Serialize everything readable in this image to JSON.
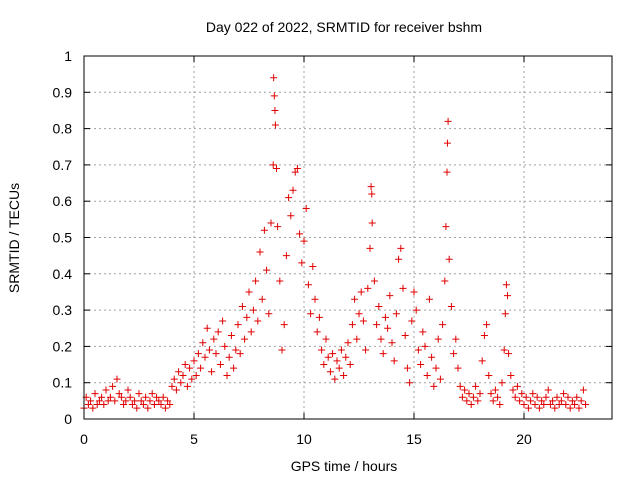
{
  "chart_data": {
    "type": "scatter",
    "title": "Day 022 of 2022, SRMTID for receiver bshm",
    "xlabel": "GPS time / hours",
    "ylabel": "SRMTID / TECUs",
    "xlim": [
      0,
      24
    ],
    "ylim": [
      0,
      1
    ],
    "xticks": [
      0,
      5,
      10,
      15,
      20
    ],
    "yticks": [
      0,
      0.1,
      0.2,
      0.3,
      0.4,
      0.5,
      0.6,
      0.7,
      0.8,
      0.9,
      1
    ],
    "xtick_labels": [
      "0",
      "5",
      "10",
      "15",
      "20"
    ],
    "ytick_labels": [
      "0",
      "0.1",
      "0.2",
      "0.3",
      "0.4",
      "0.5",
      "0.6",
      "0.7",
      "0.8",
      "0.9",
      "1"
    ],
    "grid": true,
    "marker": "+",
    "color": "#e00000",
    "series": [
      {
        "name": "SRMTID",
        "points": [
          [
            0.0,
            0.03
          ],
          [
            0.1,
            0.06
          ],
          [
            0.2,
            0.04
          ],
          [
            0.3,
            0.05
          ],
          [
            0.4,
            0.03
          ],
          [
            0.5,
            0.07
          ],
          [
            0.6,
            0.04
          ],
          [
            0.7,
            0.05
          ],
          [
            0.8,
            0.06
          ],
          [
            0.9,
            0.04
          ],
          [
            1.0,
            0.08
          ],
          [
            1.1,
            0.05
          ],
          [
            1.2,
            0.06
          ],
          [
            1.3,
            0.09
          ],
          [
            1.4,
            0.05
          ],
          [
            1.5,
            0.11
          ],
          [
            1.6,
            0.07
          ],
          [
            1.7,
            0.06
          ],
          [
            1.8,
            0.04
          ],
          [
            1.9,
            0.05
          ],
          [
            2.0,
            0.08
          ],
          [
            2.1,
            0.06
          ],
          [
            2.2,
            0.04
          ],
          [
            2.3,
            0.05
          ],
          [
            2.4,
            0.03
          ],
          [
            2.5,
            0.07
          ],
          [
            2.6,
            0.05
          ],
          [
            2.7,
            0.04
          ],
          [
            2.8,
            0.06
          ],
          [
            2.9,
            0.03
          ],
          [
            3.0,
            0.05
          ],
          [
            3.1,
            0.07
          ],
          [
            3.2,
            0.04
          ],
          [
            3.3,
            0.06
          ],
          [
            3.4,
            0.05
          ],
          [
            3.5,
            0.04
          ],
          [
            3.6,
            0.06
          ],
          [
            3.7,
            0.03
          ],
          [
            3.8,
            0.05
          ],
          [
            3.9,
            0.04
          ],
          [
            4.0,
            0.09
          ],
          [
            4.1,
            0.11
          ],
          [
            4.2,
            0.08
          ],
          [
            4.3,
            0.13
          ],
          [
            4.4,
            0.1
          ],
          [
            4.5,
            0.12
          ],
          [
            4.6,
            0.15
          ],
          [
            4.7,
            0.09
          ],
          [
            4.8,
            0.14
          ],
          [
            4.9,
            0.11
          ],
          [
            5.0,
            0.16
          ],
          [
            5.1,
            0.12
          ],
          [
            5.2,
            0.18
          ],
          [
            5.3,
            0.14
          ],
          [
            5.4,
            0.21
          ],
          [
            5.5,
            0.17
          ],
          [
            5.6,
            0.25
          ],
          [
            5.7,
            0.19
          ],
          [
            5.8,
            0.13
          ],
          [
            5.9,
            0.22
          ],
          [
            6.0,
            0.18
          ],
          [
            6.1,
            0.24
          ],
          [
            6.2,
            0.15
          ],
          [
            6.3,
            0.27
          ],
          [
            6.4,
            0.2
          ],
          [
            6.5,
            0.12
          ],
          [
            6.6,
            0.17
          ],
          [
            6.7,
            0.23
          ],
          [
            6.8,
            0.14
          ],
          [
            6.9,
            0.19
          ],
          [
            7.0,
            0.26
          ],
          [
            7.1,
            0.18
          ],
          [
            7.2,
            0.31
          ],
          [
            7.3,
            0.22
          ],
          [
            7.4,
            0.28
          ],
          [
            7.5,
            0.35
          ],
          [
            7.6,
            0.24
          ],
          [
            7.7,
            0.3
          ],
          [
            7.8,
            0.38
          ],
          [
            7.9,
            0.27
          ],
          [
            8.0,
            0.46
          ],
          [
            8.1,
            0.33
          ],
          [
            8.2,
            0.52
          ],
          [
            8.3,
            0.41
          ],
          [
            8.4,
            0.29
          ],
          [
            8.5,
            0.54
          ],
          [
            8.6,
            0.7
          ],
          [
            8.62,
            0.94
          ],
          [
            8.65,
            0.89
          ],
          [
            8.68,
            0.85
          ],
          [
            8.7,
            0.81
          ],
          [
            8.75,
            0.69
          ],
          [
            8.8,
            0.53
          ],
          [
            8.9,
            0.38
          ],
          [
            9.0,
            0.19
          ],
          [
            9.1,
            0.26
          ],
          [
            9.2,
            0.45
          ],
          [
            9.3,
            0.61
          ],
          [
            9.4,
            0.56
          ],
          [
            9.5,
            0.63
          ],
          [
            9.6,
            0.68
          ],
          [
            9.7,
            0.69
          ],
          [
            9.8,
            0.51
          ],
          [
            9.9,
            0.43
          ],
          [
            10.0,
            0.49
          ],
          [
            10.1,
            0.58
          ],
          [
            10.2,
            0.37
          ],
          [
            10.3,
            0.29
          ],
          [
            10.4,
            0.42
          ],
          [
            10.5,
            0.33
          ],
          [
            10.6,
            0.24
          ],
          [
            10.7,
            0.28
          ],
          [
            10.8,
            0.19
          ],
          [
            10.9,
            0.15
          ],
          [
            11.0,
            0.22
          ],
          [
            11.1,
            0.17
          ],
          [
            11.2,
            0.13
          ],
          [
            11.3,
            0.18
          ],
          [
            11.4,
            0.11
          ],
          [
            11.5,
            0.16
          ],
          [
            11.6,
            0.14
          ],
          [
            11.7,
            0.19
          ],
          [
            11.8,
            0.12
          ],
          [
            11.9,
            0.17
          ],
          [
            12.0,
            0.21
          ],
          [
            12.1,
            0.15
          ],
          [
            12.2,
            0.26
          ],
          [
            12.3,
            0.33
          ],
          [
            12.4,
            0.22
          ],
          [
            12.5,
            0.29
          ],
          [
            12.6,
            0.35
          ],
          [
            12.7,
            0.27
          ],
          [
            12.8,
            0.19
          ],
          [
            12.9,
            0.36
          ],
          [
            13.0,
            0.47
          ],
          [
            13.05,
            0.64
          ],
          [
            13.08,
            0.62
          ],
          [
            13.1,
            0.54
          ],
          [
            13.2,
            0.38
          ],
          [
            13.3,
            0.26
          ],
          [
            13.4,
            0.31
          ],
          [
            13.5,
            0.22
          ],
          [
            13.6,
            0.18
          ],
          [
            13.7,
            0.28
          ],
          [
            13.8,
            0.25
          ],
          [
            13.9,
            0.34
          ],
          [
            14.0,
            0.21
          ],
          [
            14.1,
            0.16
          ],
          [
            14.2,
            0.29
          ],
          [
            14.3,
            0.44
          ],
          [
            14.4,
            0.47
          ],
          [
            14.5,
            0.36
          ],
          [
            14.6,
            0.23
          ],
          [
            14.7,
            0.14
          ],
          [
            14.8,
            0.1
          ],
          [
            14.9,
            0.27
          ],
          [
            15.0,
            0.35
          ],
          [
            15.1,
            0.3
          ],
          [
            15.2,
            0.19
          ],
          [
            15.3,
            0.15
          ],
          [
            15.4,
            0.24
          ],
          [
            15.5,
            0.2
          ],
          [
            15.6,
            0.12
          ],
          [
            15.7,
            0.33
          ],
          [
            15.8,
            0.17
          ],
          [
            15.9,
            0.09
          ],
          [
            16.0,
            0.14
          ],
          [
            16.1,
            0.22
          ],
          [
            16.2,
            0.11
          ],
          [
            16.3,
            0.26
          ],
          [
            16.4,
            0.38
          ],
          [
            16.45,
            0.53
          ],
          [
            16.5,
            0.68
          ],
          [
            16.52,
            0.76
          ],
          [
            16.55,
            0.82
          ],
          [
            16.6,
            0.44
          ],
          [
            16.7,
            0.31
          ],
          [
            16.8,
            0.18
          ],
          [
            16.9,
            0.22
          ],
          [
            17.0,
            0.14
          ],
          [
            17.1,
            0.09
          ],
          [
            17.2,
            0.06
          ],
          [
            17.3,
            0.08
          ],
          [
            17.4,
            0.05
          ],
          [
            17.5,
            0.07
          ],
          [
            17.6,
            0.04
          ],
          [
            17.7,
            0.06
          ],
          [
            17.8,
            0.09
          ],
          [
            17.9,
            0.05
          ],
          [
            18.0,
            0.07
          ],
          [
            18.1,
            0.16
          ],
          [
            18.2,
            0.23
          ],
          [
            18.3,
            0.26
          ],
          [
            18.4,
            0.12
          ],
          [
            18.5,
            0.07
          ],
          [
            18.6,
            0.05
          ],
          [
            18.7,
            0.08
          ],
          [
            18.8,
            0.06
          ],
          [
            18.9,
            0.04
          ],
          [
            19.0,
            0.1
          ],
          [
            19.1,
            0.19
          ],
          [
            19.15,
            0.29
          ],
          [
            19.2,
            0.37
          ],
          [
            19.25,
            0.34
          ],
          [
            19.3,
            0.18
          ],
          [
            19.4,
            0.12
          ],
          [
            19.5,
            0.08
          ],
          [
            19.6,
            0.06
          ],
          [
            19.7,
            0.09
          ],
          [
            19.8,
            0.05
          ],
          [
            19.9,
            0.07
          ],
          [
            20.0,
            0.04
          ],
          [
            20.1,
            0.06
          ],
          [
            20.2,
            0.03
          ],
          [
            20.3,
            0.05
          ],
          [
            20.4,
            0.07
          ],
          [
            20.5,
            0.04
          ],
          [
            20.6,
            0.06
          ],
          [
            20.7,
            0.03
          ],
          [
            20.8,
            0.05
          ],
          [
            20.9,
            0.04
          ],
          [
            21.0,
            0.06
          ],
          [
            21.1,
            0.08
          ],
          [
            21.2,
            0.04
          ],
          [
            21.3,
            0.05
          ],
          [
            21.4,
            0.03
          ],
          [
            21.5,
            0.06
          ],
          [
            21.6,
            0.04
          ],
          [
            21.7,
            0.05
          ],
          [
            21.8,
            0.07
          ],
          [
            21.9,
            0.04
          ],
          [
            22.0,
            0.06
          ],
          [
            22.1,
            0.03
          ],
          [
            22.2,
            0.05
          ],
          [
            22.3,
            0.04
          ],
          [
            22.4,
            0.06
          ],
          [
            22.5,
            0.03
          ],
          [
            22.6,
            0.05
          ],
          [
            22.7,
            0.08
          ],
          [
            22.8,
            0.04
          ]
        ]
      }
    ]
  }
}
